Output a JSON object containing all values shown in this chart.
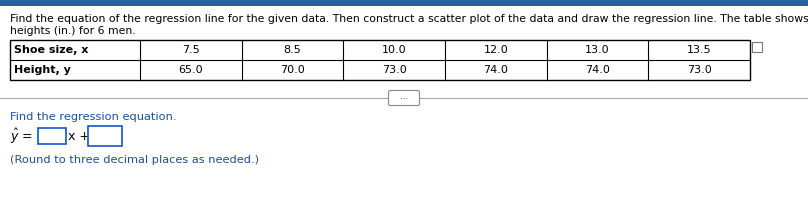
{
  "title_line1": "Find the equation of the regression line for the given data. Then construct a scatter plot of the data and draw the regression line. The table shows the shoe size and",
  "title_line2": "heights (in.) for 6 men.",
  "row1_label": "Shoe size, x",
  "row2_label": "Height, y",
  "shoe_sizes": [
    "7.5",
    "8.5",
    "10.0",
    "12.0",
    "13.0",
    "13.5"
  ],
  "heights": [
    "65.0",
    "70.0",
    "73.0",
    "74.0",
    "74.0",
    "73.0"
  ],
  "find_text": "Find the regression equation.",
  "round_text": "(Round to three decimal places as needed.)",
  "bg_color": "#ffffff",
  "text_color": "#000000",
  "blue_color": "#1f4e99",
  "top_bar_color": "#2e5fa3",
  "font_size_title": 7.8,
  "font_size_table": 8.0,
  "font_size_find": 8.2,
  "font_size_equation": 9.0,
  "font_size_round": 8.2
}
